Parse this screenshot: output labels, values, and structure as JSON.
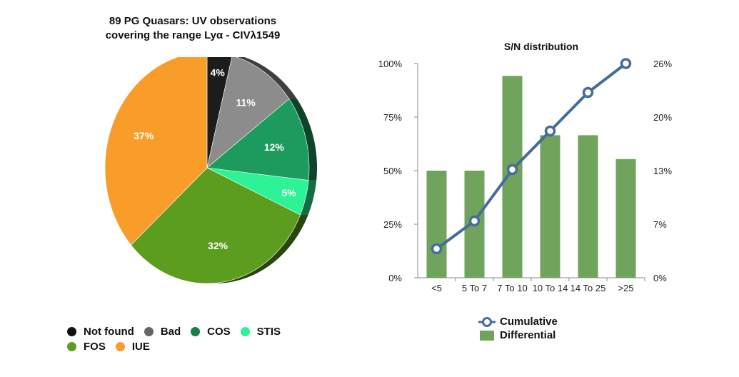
{
  "chart_data": [
    {
      "type": "pie",
      "title_lines": [
        "89 PG Quasars:  UV observations",
        "covering the range Lyα - CIVλ1549"
      ],
      "slices": [
        {
          "name": "Not found",
          "value": 4,
          "label": "4%",
          "color": "#1c1c1c"
        },
        {
          "name": "Bad",
          "value": 11,
          "label": "11%",
          "color": "#8c8c8c"
        },
        {
          "name": "COS",
          "value": 12,
          "label": "12%",
          "color": "#1d9a5e"
        },
        {
          "name": "STIS",
          "value": 5,
          "label": "5%",
          "color": "#2ef296"
        },
        {
          "name": "FOS",
          "value": 32,
          "label": "32%",
          "color": "#5c9c1e"
        },
        {
          "name": "IUE",
          "value": 37,
          "label": "37%",
          "color": "#f99d2a"
        }
      ],
      "legend": [
        [
          {
            "name": "Not found",
            "color": "#111111"
          },
          {
            "name": "Bad",
            "color": "#666666"
          },
          {
            "name": "COS",
            "color": "#168049"
          },
          {
            "name": "STIS",
            "color": "#2ef296"
          }
        ],
        [
          {
            "name": "FOS",
            "color": "#5c9c1e"
          },
          {
            "name": "IUE",
            "color": "#f99d2a"
          }
        ]
      ]
    },
    {
      "type": "bar",
      "title": "S/N distribution",
      "categories": [
        "<5",
        "5 To 7",
        "7 To 10",
        "10 To 14",
        "14 To 25",
        ">25"
      ],
      "series": [
        {
          "name": "Differential",
          "kind": "bar",
          "axis": "right",
          "values": [
            13,
            13,
            24.5,
            17.3,
            17.3,
            14.4
          ],
          "color": "#70a35c"
        },
        {
          "name": "Cumulative",
          "kind": "line",
          "axis": "left",
          "values": [
            13.5,
            26.5,
            50.5,
            68.5,
            86.5,
            100
          ],
          "color": "#456d98"
        }
      ],
      "left_axis": {
        "ylim": [
          0,
          100
        ],
        "ticks": [
          "0%",
          "25%",
          "50%",
          "75%",
          "100%"
        ]
      },
      "right_axis": {
        "ylim": [
          0,
          26
        ],
        "ticks": [
          "0%",
          "7%",
          "13%",
          "20%",
          "26%"
        ]
      },
      "legend": [
        {
          "name": "Cumulative",
          "kind": "line"
        },
        {
          "name": "Differential",
          "kind": "bar"
        }
      ]
    }
  ]
}
